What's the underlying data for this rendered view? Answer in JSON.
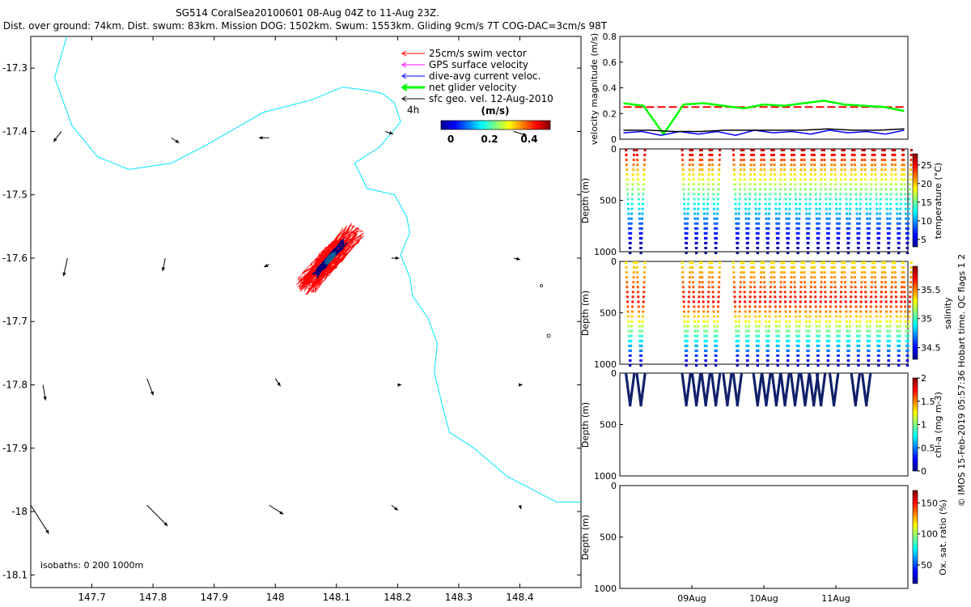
{
  "chart_data": [
    {
      "type": "scatter",
      "name": "map",
      "title": "SG514 CoralSea20100601 08-Aug 04Z to 11-Aug 23Z.",
      "subtitle": "Dist. over ground: 74km. Dist. swum: 83km. Mission DOG: 1502km. Swum: 1553km. Gliding 9cm/s 7T COG-DAC=3cm/s 98T",
      "xlim": [
        147.6,
        148.5
      ],
      "ylim": [
        -18.12,
        -17.25
      ],
      "xticks": [
        "147.7",
        "147.8",
        "147.9",
        "148",
        "148.1",
        "148.2",
        "148.3",
        "148.4"
      ],
      "yticks": [
        "-17.3",
        "-17.4",
        "-17.5",
        "-17.6",
        "-17.7",
        "-17.8",
        "-17.9",
        "-18",
        "-18.1"
      ],
      "legend": {
        "items": [
          {
            "label": "25cm/s swim vector",
            "color": "#ff0000"
          },
          {
            "label": "GPS surface velocity",
            "color": "#ff00ff"
          },
          {
            "label": "dive-avg current veloc.",
            "color": "#0000ff"
          },
          {
            "label": "net glider velocity",
            "color": "#00ff00"
          },
          {
            "label": "sfc geo. vel. 12-Aug-2010",
            "color": "#000000"
          }
        ],
        "duration_label": "4h",
        "colorbar_title": "(m/s)",
        "colorbar_ticks": [
          "0",
          "0.2",
          "0.4"
        ]
      },
      "isobaths_label": "isobaths: 0   200  1000m",
      "coastline": [
        [
          147.659,
          -17.25
        ],
        [
          147.639,
          -17.315
        ],
        [
          147.667,
          -17.39
        ],
        [
          147.709,
          -17.44
        ],
        [
          147.76,
          -17.46
        ],
        [
          147.83,
          -17.45
        ],
        [
          147.89,
          -17.42
        ],
        [
          147.98,
          -17.37
        ],
        [
          148.06,
          -17.35
        ],
        [
          148.11,
          -17.33
        ],
        [
          148.15,
          -17.335
        ],
        [
          148.175,
          -17.34
        ],
        [
          148.195,
          -17.355
        ],
        [
          148.205,
          -17.385
        ],
        [
          148.17,
          -17.425
        ],
        [
          148.13,
          -17.45
        ],
        [
          148.15,
          -17.49
        ],
        [
          148.195,
          -17.5
        ],
        [
          148.215,
          -17.535
        ],
        [
          148.22,
          -17.56
        ],
        [
          148.205,
          -17.595
        ],
        [
          148.22,
          -17.63
        ],
        [
          148.225,
          -17.66
        ],
        [
          148.25,
          -17.695
        ],
        [
          148.265,
          -17.735
        ],
        [
          148.26,
          -17.78
        ],
        [
          148.275,
          -17.84
        ],
        [
          148.285,
          -17.875
        ],
        [
          148.325,
          -17.9
        ],
        [
          148.38,
          -17.945
        ],
        [
          148.43,
          -17.97
        ],
        [
          148.46,
          -17.985
        ],
        [
          148.5,
          -17.985
        ]
      ],
      "geo_vectors": [
        {
          "lon": 147.65,
          "lat": -17.4,
          "u": -0.06,
          "v": -0.08
        },
        {
          "lon": 147.83,
          "lat": -17.41,
          "u": 0.06,
          "v": -0.04
        },
        {
          "lon": 147.99,
          "lat": -17.41,
          "u": -0.08,
          "v": 0.0
        },
        {
          "lon": 148.18,
          "lat": -17.4,
          "u": 0.06,
          "v": -0.02
        },
        {
          "lon": 148.39,
          "lat": -17.4,
          "u": 0.1,
          "v": -0.03
        },
        {
          "lon": 147.66,
          "lat": -17.6,
          "u": -0.03,
          "v": -0.14
        },
        {
          "lon": 147.82,
          "lat": -17.6,
          "u": -0.02,
          "v": -0.1
        },
        {
          "lon": 147.99,
          "lat": -17.61,
          "u": -0.04,
          "v": -0.02
        },
        {
          "lon": 148.19,
          "lat": -17.6,
          "u": 0.06,
          "v": 0.0
        },
        {
          "lon": 148.39,
          "lat": -17.6,
          "u": 0.05,
          "v": -0.01
        },
        {
          "lon": 147.62,
          "lat": -17.8,
          "u": 0.02,
          "v": -0.12
        },
        {
          "lon": 147.79,
          "lat": -17.79,
          "u": 0.05,
          "v": -0.13
        },
        {
          "lon": 148.0,
          "lat": -17.79,
          "u": 0.04,
          "v": -0.06
        },
        {
          "lon": 148.2,
          "lat": -17.8,
          "u": 0.03,
          "v": 0.0
        },
        {
          "lon": 148.4,
          "lat": -17.8,
          "u": 0.02,
          "v": 0.0
        },
        {
          "lon": 147.6,
          "lat": -17.99,
          "u": 0.14,
          "v": -0.22
        },
        {
          "lon": 147.79,
          "lat": -17.99,
          "u": 0.16,
          "v": -0.16
        },
        {
          "lon": 147.99,
          "lat": -17.99,
          "u": 0.11,
          "v": -0.07
        },
        {
          "lon": 148.19,
          "lat": -17.99,
          "u": 0.05,
          "v": -0.04
        },
        {
          "lon": 148.4,
          "lat": -17.99,
          "u": 0.01,
          "v": -0.03
        }
      ]
    },
    {
      "type": "line",
      "name": "velocity",
      "ylabel": "velocity magnitude (m/s)",
      "ylim": [
        0,
        0.8
      ],
      "yticks": [
        "0",
        "0.2",
        "0.4",
        "0.6",
        "0.8"
      ],
      "xlim": [
        0,
        4
      ],
      "series": [
        {
          "name": "25cm/s swim vector",
          "color": "#ff0000",
          "values": [
            0.25,
            0.25,
            0.25,
            0.25,
            0.25,
            0.25,
            0.25,
            0.25
          ]
        },
        {
          "name": "net glider velocity",
          "color": "#00ff00",
          "values": [
            0.28,
            0.26,
            0.04,
            0.27,
            0.28,
            0.26,
            0.24,
            0.27,
            0.26,
            0.28,
            0.3,
            0.27,
            0.26,
            0.25,
            0.22
          ]
        },
        {
          "name": "dive-avg current veloc.",
          "color": "#0000ff",
          "values": [
            0.05,
            0.06,
            0.03,
            0.06,
            0.04,
            0.06,
            0.03,
            0.07,
            0.05,
            0.06,
            0.04,
            0.07,
            0.05,
            0.06,
            0.04,
            0.07
          ]
        },
        {
          "name": "sfc geo. vel.",
          "color": "#000000",
          "values": [
            0.07,
            0.07,
            0.06,
            0.06,
            0.07,
            0.07,
            0.07,
            0.07,
            0.08,
            0.07,
            0.07,
            0.08
          ]
        }
      ]
    },
    {
      "type": "scatter",
      "name": "temperature",
      "ylabel": "Depth (m)",
      "cbar_label": "temperature (°C)",
      "ylim": [
        1000,
        0
      ],
      "yticks": [
        "0",
        "500",
        "1000"
      ],
      "clim": [
        3,
        28
      ],
      "cticks": [
        "5",
        "10",
        "15",
        "20",
        "25"
      ],
      "dive_times": [
        0.07,
        0.22,
        0.85,
        0.99,
        1.12,
        1.26,
        1.56,
        1.7,
        1.84,
        1.98,
        2.12,
        2.26,
        2.4,
        2.54,
        2.68,
        2.82,
        2.96,
        3.1,
        3.24,
        3.38,
        3.52,
        3.66,
        3.8,
        3.92
      ],
      "max_depth": 1000,
      "surface_value": 27,
      "deep_value": 4
    },
    {
      "type": "scatter",
      "name": "salinity",
      "ylabel": "Depth (m)",
      "cbar_label": "salinity",
      "ylim": [
        1000,
        0
      ],
      "yticks": [
        "0",
        "500",
        "1000"
      ],
      "clim": [
        34.3,
        35.9
      ],
      "cticks": [
        "34.5",
        "35",
        "35.5"
      ],
      "dive_times": [
        0.07,
        0.22,
        0.85,
        0.99,
        1.12,
        1.26,
        1.56,
        1.7,
        1.84,
        1.98,
        2.12,
        2.26,
        2.4,
        2.54,
        2.68,
        2.82,
        2.96,
        3.1,
        3.24,
        3.38,
        3.52,
        3.66,
        3.8,
        3.92
      ],
      "max_depth": 1000
    },
    {
      "type": "scatter",
      "name": "chla",
      "ylabel": "Depth (m)",
      "cbar_label": "chl-a (mg m-3)",
      "ylim": [
        1000,
        0
      ],
      "yticks": [
        "0",
        "500",
        "1000"
      ],
      "clim": [
        0,
        2
      ],
      "cticks": [
        "0",
        "0.5",
        "1",
        "1.5",
        "2"
      ],
      "dive_times": [
        0.07,
        0.22,
        0.85,
        0.99,
        1.12,
        1.26,
        1.42,
        1.56,
        1.84,
        1.96,
        2.1,
        2.22,
        2.36,
        2.5,
        2.62,
        2.72,
        2.9,
        3.2,
        3.35
      ],
      "max_depth": 300
    },
    {
      "type": "scatter",
      "name": "oxygen",
      "ylabel": "Depth (m)",
      "cbar_label": "Ox. sat. ratio (%)",
      "ylim": [
        1000,
        0
      ],
      "yticks": [
        "0",
        "500",
        "1000"
      ],
      "clim": [
        20,
        170
      ],
      "cticks": [
        "50",
        "100",
        "150"
      ],
      "xticks": [
        {
          "pos": 1.0,
          "label": "09Aug"
        },
        {
          "pos": 2.0,
          "label": "10Aug"
        },
        {
          "pos": 3.0,
          "label": "11Aug"
        }
      ]
    }
  ],
  "footer": "© IMOS 15-Feb-2019 05:57:36 Hobart time. QC flags 1  2"
}
